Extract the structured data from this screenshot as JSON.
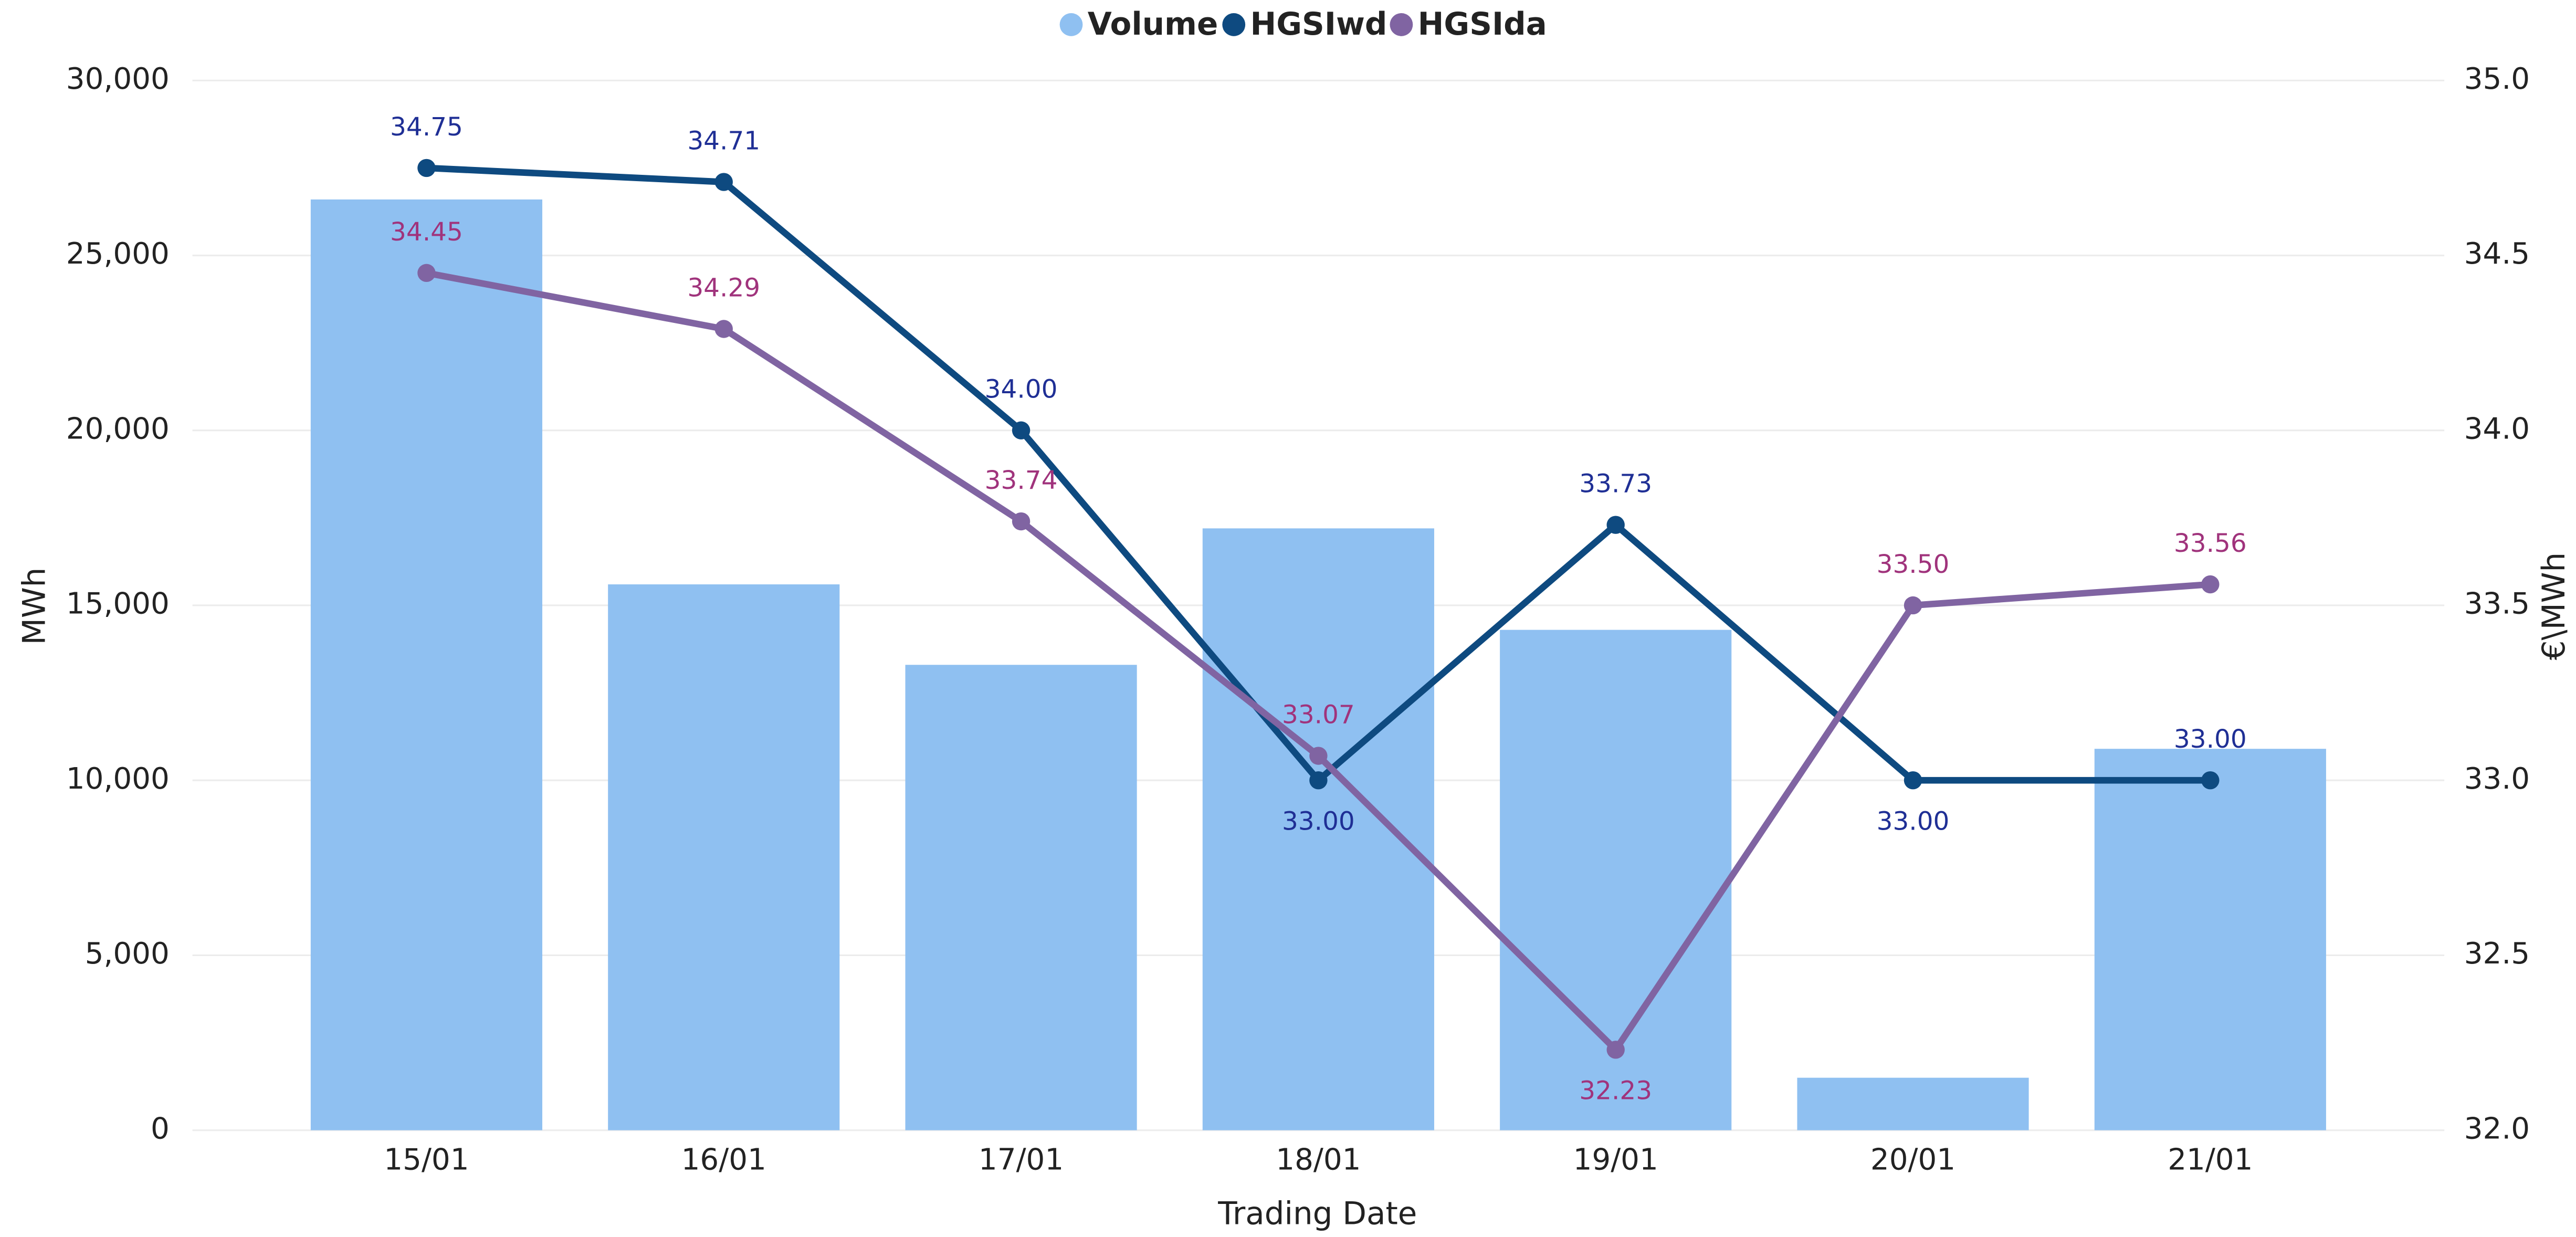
{
  "chart_data": {
    "type": "bar",
    "categories": [
      "15/01",
      "16/01",
      "17/01",
      "18/01",
      "19/01",
      "20/01",
      "21/01"
    ],
    "x_label": "Trading Date",
    "y_label": "MWh",
    "y2_label": "€\\MWh",
    "ylim": [
      0,
      30000
    ],
    "yticks": [
      {
        "value": 0,
        "label": "0"
      },
      {
        "value": 5000,
        "label": "5,000"
      },
      {
        "value": 10000,
        "label": "10,000"
      },
      {
        "value": 15000,
        "label": "15,000"
      },
      {
        "value": 20000,
        "label": "20,000"
      },
      {
        "value": 25000,
        "label": "25,000"
      },
      {
        "value": 30000,
        "label": "30,000"
      }
    ],
    "y2lim": [
      32,
      35
    ],
    "y2ticks": [
      {
        "value": 32,
        "label": "32.0"
      },
      32.5,
      {
        "value": 33,
        "label": "33.0"
      },
      33.5,
      {
        "value": 34,
        "label": "34.0"
      },
      34.5,
      {
        "value": 35,
        "label": "35.0"
      }
    ],
    "grid": true,
    "legend": "top",
    "series": [
      {
        "name": "Volume",
        "type": "bar",
        "color": "#8fc0f1",
        "label_color": null,
        "values": [
          26600,
          15600,
          13300,
          17200,
          14300,
          1500,
          10900
        ]
      },
      {
        "name": "HGSIwd",
        "type": "line",
        "axis": "y2",
        "color": "#0e4a80",
        "label_color": "#1f2f95",
        "values": [
          34.75,
          34.71,
          34.0,
          33.0,
          33.73,
          33.0,
          33.0
        ],
        "value_labels": [
          "34.75",
          "34.71",
          "34.00",
          "33.00",
          "33.73",
          "33.00",
          "33.00"
        ]
      },
      {
        "name": "HGSIda",
        "type": "line",
        "axis": "y2",
        "color": "#8064a2",
        "label_color": "#a0337c",
        "values": [
          34.45,
          34.29,
          33.74,
          33.07,
          32.23,
          33.5,
          33.56
        ],
        "value_labels": [
          "34.45",
          "34.29",
          "33.74",
          "33.07",
          "32.23",
          "33.50",
          "33.56"
        ]
      }
    ]
  }
}
